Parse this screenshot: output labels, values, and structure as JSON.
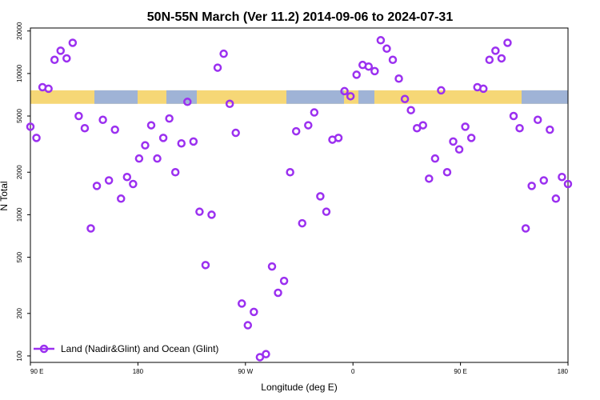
{
  "chart_data": {
    "type": "scatter",
    "title": "50N-55N March (Ver 11.2)   2014-09-06 to 2024-07-31",
    "xlabel": "Longitude (deg E)",
    "ylabel": "N Total",
    "y_scale": "log",
    "ylim": [
      90,
      21000
    ],
    "x_ticks": [
      "90 E",
      "180",
      "90 W",
      "0",
      "90 E",
      "180"
    ],
    "y_ticks": [
      100,
      200,
      500,
      1000,
      2000,
      5000,
      10000,
      20000
    ],
    "y_tick_labels": [
      "100",
      "200",
      "500",
      "1000",
      "2000",
      "5000",
      "10000",
      "20000"
    ],
    "legend": {
      "label": "Land (Nadir&Glint) and Ocean (Glint)",
      "position": "bottom-left"
    },
    "colors": {
      "marker": "#9b30f0",
      "land": "#f6d776",
      "ocean": "#9fb3d6",
      "axis": "#000000"
    },
    "land_ocean_band": {
      "value_low": 6100,
      "value_high": 7600
    },
    "series": [
      {
        "name": "Land (Nadir&Glint) and Ocean (Glint)",
        "points": [
          [
            0,
            4200
          ],
          [
            1,
            3500
          ],
          [
            2,
            8000
          ],
          [
            3,
            7800
          ],
          [
            4,
            12500
          ],
          [
            5,
            14500
          ],
          [
            6,
            12800
          ],
          [
            7,
            16500
          ],
          [
            8,
            5000
          ],
          [
            9,
            4100
          ],
          [
            10,
            800
          ],
          [
            11,
            1600
          ],
          [
            12,
            4700
          ],
          [
            13,
            1750
          ],
          [
            14,
            4000
          ],
          [
            15,
            1300
          ],
          [
            16,
            1850
          ],
          [
            17,
            1650
          ],
          [
            18,
            2500
          ],
          [
            19,
            3100
          ],
          [
            20,
            4300
          ],
          [
            21,
            2500
          ],
          [
            22,
            3500
          ],
          [
            23,
            4800
          ],
          [
            24,
            2000
          ],
          [
            25,
            3200
          ],
          [
            26,
            6300
          ],
          [
            27,
            3300
          ],
          [
            28,
            1050
          ],
          [
            29,
            440
          ],
          [
            30,
            1000
          ],
          [
            31,
            11000
          ],
          [
            32,
            13800
          ],
          [
            33,
            6100
          ],
          [
            34,
            3800
          ],
          [
            35,
            235
          ],
          [
            36,
            165
          ],
          [
            37,
            205
          ],
          [
            38,
            98
          ],
          [
            39,
            103
          ],
          [
            40,
            430
          ],
          [
            41,
            280
          ],
          [
            42,
            340
          ],
          [
            43,
            2000
          ],
          [
            44,
            3900
          ],
          [
            45,
            870
          ],
          [
            46,
            4300
          ],
          [
            47,
            5300
          ],
          [
            48,
            1350
          ],
          [
            49,
            1050
          ],
          [
            50,
            3400
          ],
          [
            51,
            3500
          ],
          [
            52,
            7500
          ],
          [
            53,
            6900
          ],
          [
            54,
            9800
          ],
          [
            55,
            11500
          ],
          [
            56,
            11200
          ],
          [
            57,
            10400
          ],
          [
            58,
            17200
          ],
          [
            59,
            15000
          ],
          [
            60,
            12500
          ],
          [
            61,
            9200
          ],
          [
            62,
            6600
          ],
          [
            63,
            5500
          ],
          [
            64,
            4100
          ],
          [
            65,
            4300
          ],
          [
            66,
            1800
          ],
          [
            67,
            2500
          ],
          [
            68,
            7600
          ],
          [
            69,
            2000
          ],
          [
            70,
            3300
          ],
          [
            71,
            2900
          ],
          [
            72,
            4200
          ],
          [
            73,
            3500
          ],
          [
            74,
            8000
          ],
          [
            75,
            7800
          ],
          [
            76,
            12500
          ],
          [
            77,
            14500
          ],
          [
            78,
            12800
          ],
          [
            79,
            16500
          ],
          [
            80,
            5000
          ],
          [
            81,
            4100
          ],
          [
            82,
            800
          ],
          [
            83,
            1600
          ],
          [
            84,
            4700
          ],
          [
            85,
            1750
          ],
          [
            86,
            4000
          ],
          [
            87,
            1300
          ],
          [
            88,
            1850
          ],
          [
            89,
            1650
          ]
        ]
      }
    ]
  }
}
